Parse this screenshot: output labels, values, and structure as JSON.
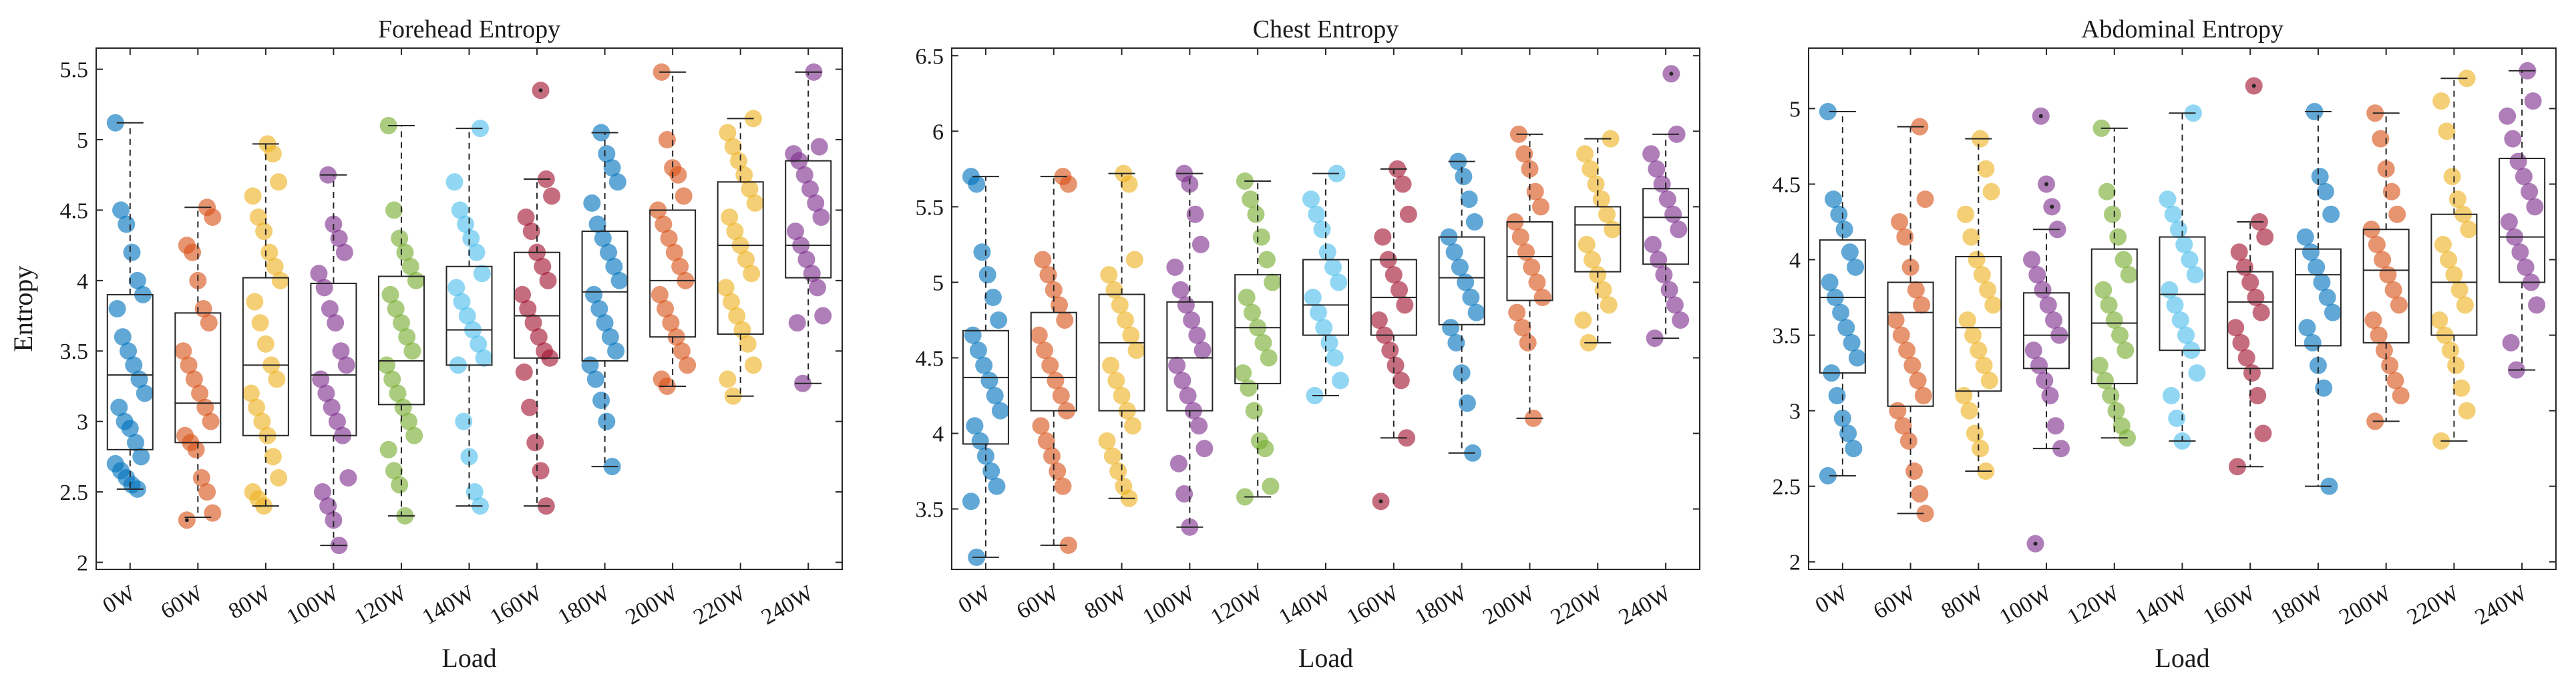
{
  "chart_data": [
    {
      "type": "box",
      "title": "Forehead Entropy",
      "xlabel": "Load",
      "ylabel": "Entropy",
      "ylim": [
        1.95,
        5.65
      ],
      "yticks": [
        2,
        2.5,
        3,
        3.5,
        4,
        4.5,
        5,
        5.5
      ],
      "categories": [
        "0W",
        "60W",
        "80W",
        "100W",
        "120W",
        "140W",
        "160W",
        "180W",
        "200W",
        "220W",
        "240W"
      ],
      "boxes": [
        {
          "min": 2.52,
          "q1": 2.8,
          "median": 3.33,
          "q3": 3.9,
          "max": 5.12,
          "points": [
            5.12,
            4.5,
            4.4,
            4.2,
            4.0,
            3.9,
            3.8,
            3.6,
            3.5,
            3.4,
            3.3,
            3.2,
            3.1,
            3.0,
            2.95,
            2.85,
            2.75,
            2.7,
            2.65,
            2.6,
            2.55,
            2.52
          ]
        },
        {
          "min": 2.32,
          "q1": 2.85,
          "median": 3.13,
          "q3": 3.77,
          "max": 4.52,
          "points": [
            4.52,
            4.45,
            4.25,
            4.2,
            4.0,
            3.8,
            3.7,
            3.5,
            3.4,
            3.3,
            3.2,
            3.1,
            3.0,
            2.9,
            2.85,
            2.8,
            2.6,
            2.5,
            2.35,
            2.3
          ]
        },
        {
          "min": 2.4,
          "q1": 2.9,
          "median": 3.4,
          "q3": 4.02,
          "max": 4.97,
          "points": [
            4.97,
            4.9,
            4.7,
            4.6,
            4.45,
            4.35,
            4.2,
            4.1,
            4.0,
            3.85,
            3.7,
            3.55,
            3.4,
            3.3,
            3.2,
            3.1,
            3.0,
            2.9,
            2.75,
            2.6,
            2.5,
            2.45,
            2.4
          ]
        },
        {
          "min": 2.12,
          "q1": 2.9,
          "median": 3.33,
          "q3": 3.98,
          "max": 4.75,
          "points": [
            4.75,
            4.4,
            4.3,
            4.2,
            4.05,
            3.95,
            3.8,
            3.7,
            3.5,
            3.4,
            3.3,
            3.2,
            3.1,
            3.0,
            2.9,
            2.6,
            2.5,
            2.4,
            2.3,
            2.12
          ]
        },
        {
          "min": 2.33,
          "q1": 3.12,
          "median": 3.43,
          "q3": 4.03,
          "max": 5.1,
          "points": [
            5.1,
            4.5,
            4.3,
            4.2,
            4.1,
            4.0,
            3.9,
            3.8,
            3.7,
            3.6,
            3.5,
            3.4,
            3.3,
            3.2,
            3.1,
            3.0,
            2.9,
            2.8,
            2.65,
            2.55,
            2.33
          ]
        },
        {
          "min": 2.4,
          "q1": 3.4,
          "median": 3.65,
          "q3": 4.1,
          "max": 5.08,
          "points": [
            5.08,
            4.7,
            4.5,
            4.4,
            4.3,
            4.2,
            4.05,
            3.95,
            3.85,
            3.75,
            3.65,
            3.55,
            3.45,
            3.4,
            3.0,
            2.75,
            2.5,
            2.4
          ]
        },
        {
          "min": 2.4,
          "q1": 3.45,
          "median": 3.75,
          "q3": 4.2,
          "max": 4.72,
          "points": [
            5.35,
            4.72,
            4.6,
            4.45,
            4.35,
            4.2,
            4.1,
            4.0,
            3.9,
            3.8,
            3.7,
            3.6,
            3.5,
            3.45,
            3.35,
            3.1,
            2.85,
            2.65,
            2.4
          ]
        },
        {
          "min": 2.68,
          "q1": 3.43,
          "median": 3.92,
          "q3": 4.35,
          "max": 5.05,
          "points": [
            5.05,
            4.9,
            4.8,
            4.7,
            4.55,
            4.4,
            4.3,
            4.2,
            4.1,
            4.0,
            3.9,
            3.8,
            3.7,
            3.6,
            3.5,
            3.4,
            3.3,
            3.15,
            3.0,
            2.68
          ]
        },
        {
          "min": 3.25,
          "q1": 3.6,
          "median": 4.0,
          "q3": 4.5,
          "max": 5.48,
          "points": [
            5.48,
            5.0,
            4.8,
            4.75,
            4.6,
            4.5,
            4.4,
            4.3,
            4.2,
            4.1,
            4.0,
            3.9,
            3.8,
            3.7,
            3.6,
            3.5,
            3.4,
            3.3,
            3.25
          ]
        },
        {
          "min": 3.18,
          "q1": 3.62,
          "median": 4.25,
          "q3": 4.7,
          "max": 5.15,
          "points": [
            5.15,
            5.05,
            4.95,
            4.85,
            4.75,
            4.65,
            4.55,
            4.45,
            4.35,
            4.25,
            4.15,
            4.05,
            3.95,
            3.85,
            3.75,
            3.65,
            3.55,
            3.4,
            3.3,
            3.18
          ]
        },
        {
          "min": 3.27,
          "q1": 4.02,
          "median": 4.25,
          "q3": 4.85,
          "max": 5.48,
          "points": [
            5.48,
            4.95,
            4.9,
            4.85,
            4.75,
            4.65,
            4.55,
            4.45,
            4.35,
            4.25,
            4.15,
            4.05,
            3.95,
            3.75,
            3.7,
            3.27
          ]
        }
      ]
    },
    {
      "type": "box",
      "title": "Chest Entropy",
      "xlabel": "Load",
      "ylabel": "",
      "ylim": [
        3.1,
        6.55
      ],
      "yticks": [
        3.5,
        4,
        4.5,
        5,
        5.5,
        6,
        6.5
      ],
      "categories": [
        "0W",
        "60W",
        "80W",
        "100W",
        "120W",
        "140W",
        "160W",
        "180W",
        "200W",
        "220W",
        "240W"
      ],
      "boxes": [
        {
          "min": 3.18,
          "q1": 3.93,
          "median": 4.37,
          "q3": 4.68,
          "max": 5.7,
          "points": [
            5.7,
            5.65,
            5.2,
            5.05,
            4.9,
            4.75,
            4.65,
            4.55,
            4.45,
            4.35,
            4.25,
            4.15,
            4.05,
            3.95,
            3.85,
            3.75,
            3.65,
            3.55,
            3.18
          ]
        },
        {
          "min": 3.26,
          "q1": 4.15,
          "median": 4.37,
          "q3": 4.8,
          "max": 5.7,
          "points": [
            5.7,
            5.65,
            5.15,
            5.05,
            4.95,
            4.85,
            4.75,
            4.65,
            4.55,
            4.45,
            4.35,
            4.25,
            4.15,
            4.05,
            3.95,
            3.85,
            3.75,
            3.65,
            3.26
          ]
        },
        {
          "min": 3.57,
          "q1": 4.15,
          "median": 4.6,
          "q3": 4.92,
          "max": 5.72,
          "points": [
            5.72,
            5.65,
            5.15,
            5.05,
            4.95,
            4.85,
            4.75,
            4.65,
            4.55,
            4.45,
            4.35,
            4.25,
            4.15,
            4.05,
            3.95,
            3.85,
            3.75,
            3.65,
            3.57
          ]
        },
        {
          "min": 3.38,
          "q1": 4.15,
          "median": 4.5,
          "q3": 4.87,
          "max": 5.72,
          "points": [
            5.72,
            5.65,
            5.45,
            5.25,
            5.1,
            4.95,
            4.85,
            4.75,
            4.65,
            4.55,
            4.45,
            4.35,
            4.25,
            4.15,
            4.05,
            3.9,
            3.8,
            3.6,
            3.38
          ]
        },
        {
          "min": 3.58,
          "q1": 4.33,
          "median": 4.7,
          "q3": 5.05,
          "max": 5.67,
          "points": [
            5.67,
            5.55,
            5.45,
            5.3,
            5.15,
            5.0,
            4.9,
            4.8,
            4.7,
            4.6,
            4.5,
            4.4,
            4.3,
            4.15,
            3.95,
            3.9,
            3.65,
            3.58
          ]
        },
        {
          "min": 4.25,
          "q1": 4.65,
          "median": 4.85,
          "q3": 5.15,
          "max": 5.72,
          "points": [
            5.72,
            5.55,
            5.45,
            5.35,
            5.2,
            5.1,
            5.0,
            4.9,
            4.8,
            4.7,
            4.6,
            4.5,
            4.35,
            4.25
          ]
        },
        {
          "min": 3.97,
          "q1": 4.65,
          "median": 4.9,
          "q3": 5.15,
          "max": 5.75,
          "points": [
            5.75,
            5.65,
            5.45,
            5.3,
            5.15,
            5.05,
            4.95,
            4.85,
            4.75,
            4.65,
            4.55,
            4.45,
            4.35,
            3.97,
            3.55
          ]
        },
        {
          "min": 3.87,
          "q1": 4.72,
          "median": 5.03,
          "q3": 5.3,
          "max": 5.8,
          "points": [
            5.8,
            5.7,
            5.55,
            5.4,
            5.3,
            5.2,
            5.1,
            5.0,
            4.9,
            4.8,
            4.7,
            4.6,
            4.4,
            4.2,
            3.87
          ]
        },
        {
          "min": 4.1,
          "q1": 4.88,
          "median": 5.17,
          "q3": 5.4,
          "max": 5.98,
          "points": [
            5.98,
            5.85,
            5.75,
            5.6,
            5.5,
            5.4,
            5.3,
            5.2,
            5.1,
            5.0,
            4.9,
            4.8,
            4.7,
            4.6,
            4.1
          ]
        },
        {
          "min": 4.6,
          "q1": 5.07,
          "median": 5.38,
          "q3": 5.5,
          "max": 5.95,
          "points": [
            5.95,
            5.85,
            5.75,
            5.65,
            5.55,
            5.45,
            5.35,
            5.25,
            5.15,
            5.05,
            4.95,
            4.85,
            4.75,
            4.6
          ]
        },
        {
          "min": 4.63,
          "q1": 5.12,
          "median": 5.43,
          "q3": 5.62,
          "max": 5.98,
          "points": [
            6.38,
            5.98,
            5.85,
            5.75,
            5.65,
            5.55,
            5.45,
            5.35,
            5.25,
            5.15,
            5.05,
            4.95,
            4.85,
            4.75,
            4.63
          ]
        }
      ]
    },
    {
      "type": "box",
      "title": "Abdominal Entropy",
      "xlabel": "Load",
      "ylabel": "",
      "ylim": [
        1.95,
        5.4
      ],
      "yticks": [
        2,
        2.5,
        3,
        3.5,
        4,
        4.5,
        5
      ],
      "categories": [
        "0W",
        "60W",
        "80W",
        "100W",
        "120W",
        "140W",
        "160W",
        "180W",
        "200W",
        "220W",
        "240W"
      ],
      "boxes": [
        {
          "min": 2.57,
          "q1": 3.25,
          "median": 3.75,
          "q3": 4.13,
          "max": 4.98,
          "points": [
            4.98,
            4.4,
            4.3,
            4.2,
            4.05,
            3.95,
            3.85,
            3.75,
            3.65,
            3.55,
            3.45,
            3.35,
            3.25,
            3.1,
            2.95,
            2.85,
            2.75,
            2.57
          ]
        },
        {
          "min": 2.32,
          "q1": 3.03,
          "median": 3.65,
          "q3": 3.85,
          "max": 4.88,
          "points": [
            4.88,
            4.4,
            4.25,
            4.15,
            3.95,
            3.8,
            3.7,
            3.6,
            3.5,
            3.4,
            3.3,
            3.2,
            3.1,
            3.0,
            2.9,
            2.8,
            2.6,
            2.45,
            2.32
          ]
        },
        {
          "min": 2.6,
          "q1": 3.13,
          "median": 3.55,
          "q3": 4.02,
          "max": 4.8,
          "points": [
            4.8,
            4.6,
            4.45,
            4.3,
            4.15,
            4.0,
            3.9,
            3.8,
            3.7,
            3.6,
            3.5,
            3.4,
            3.3,
            3.2,
            3.1,
            3.0,
            2.85,
            2.75,
            2.6
          ]
        },
        {
          "min": 2.75,
          "q1": 3.28,
          "median": 3.5,
          "q3": 3.78,
          "max": 4.2,
          "points": [
            4.95,
            4.5,
            4.35,
            4.2,
            4.0,
            3.9,
            3.8,
            3.7,
            3.6,
            3.5,
            3.4,
            3.3,
            3.2,
            3.1,
            2.9,
            2.75,
            2.12
          ]
        },
        {
          "min": 2.82,
          "q1": 3.18,
          "median": 3.58,
          "q3": 4.07,
          "max": 4.87,
          "points": [
            4.87,
            4.45,
            4.3,
            4.15,
            4.0,
            3.9,
            3.8,
            3.7,
            3.6,
            3.5,
            3.4,
            3.3,
            3.2,
            3.1,
            3.0,
            2.9,
            2.82
          ]
        },
        {
          "min": 2.8,
          "q1": 3.4,
          "median": 3.77,
          "q3": 4.15,
          "max": 4.97,
          "points": [
            4.97,
            4.4,
            4.3,
            4.2,
            4.1,
            4.0,
            3.9,
            3.8,
            3.7,
            3.6,
            3.5,
            3.4,
            3.25,
            3.1,
            2.95,
            2.8
          ]
        },
        {
          "min": 2.63,
          "q1": 3.28,
          "median": 3.72,
          "q3": 3.92,
          "max": 4.25,
          "points": [
            5.15,
            4.25,
            4.15,
            4.05,
            3.95,
            3.85,
            3.75,
            3.65,
            3.55,
            3.45,
            3.35,
            3.25,
            3.1,
            2.85,
            2.63
          ]
        },
        {
          "min": 2.5,
          "q1": 3.43,
          "median": 3.9,
          "q3": 4.07,
          "max": 4.98,
          "points": [
            4.98,
            4.55,
            4.45,
            4.3,
            4.15,
            4.05,
            3.95,
            3.85,
            3.75,
            3.65,
            3.55,
            3.45,
            3.3,
            3.15,
            2.5
          ]
        },
        {
          "min": 2.93,
          "q1": 3.45,
          "median": 3.93,
          "q3": 4.2,
          "max": 4.97,
          "points": [
            4.97,
            4.8,
            4.6,
            4.45,
            4.3,
            4.2,
            4.1,
            4.0,
            3.9,
            3.8,
            3.7,
            3.6,
            3.5,
            3.4,
            3.3,
            3.2,
            3.1,
            2.93
          ]
        },
        {
          "min": 2.8,
          "q1": 3.5,
          "median": 3.85,
          "q3": 4.3,
          "max": 5.2,
          "points": [
            5.2,
            5.05,
            4.85,
            4.55,
            4.4,
            4.3,
            4.2,
            4.1,
            4.0,
            3.9,
            3.8,
            3.7,
            3.6,
            3.5,
            3.4,
            3.3,
            3.15,
            3.0,
            2.8
          ]
        },
        {
          "min": 3.27,
          "q1": 3.85,
          "median": 4.15,
          "q3": 4.67,
          "max": 5.25,
          "points": [
            5.25,
            5.05,
            4.95,
            4.8,
            4.65,
            4.55,
            4.45,
            4.35,
            4.25,
            4.15,
            4.05,
            3.95,
            3.85,
            3.7,
            3.45,
            3.27
          ]
        }
      ]
    }
  ],
  "colors": [
    "#0072BD",
    "#D95319",
    "#EDB120",
    "#7E2F8E",
    "#77AC30",
    "#4DBEEE",
    "#A2142F",
    "#0072BD",
    "#D95319",
    "#EDB120",
    "#7E2F8E"
  ]
}
